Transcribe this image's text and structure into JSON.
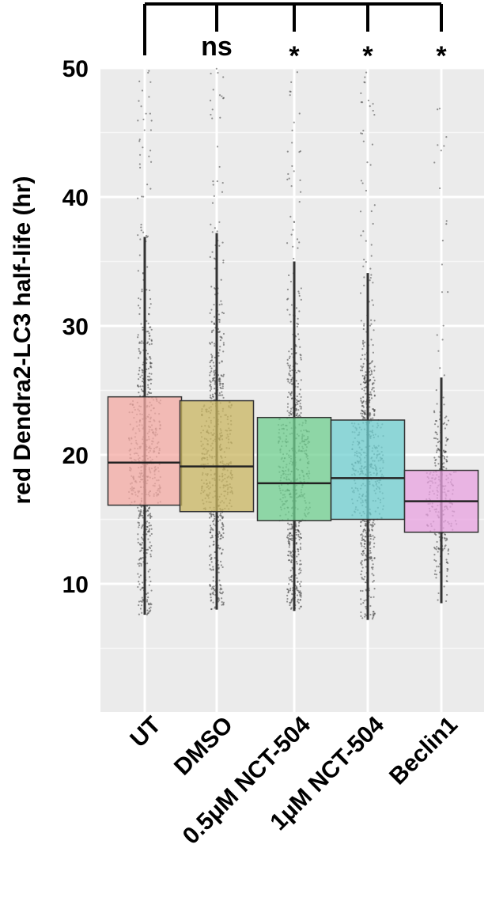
{
  "chart_data": {
    "type": "box",
    "ylabel": "red Dendra2-LC3 half-life (hr)",
    "xlabel": "",
    "ylim": [
      0,
      55
    ],
    "y_ticks": [
      10,
      20,
      30,
      40,
      50
    ],
    "grid": true,
    "categories": [
      "UT",
      "DMSO",
      "0.5μM NCT-504",
      "1μM NCT-504",
      "Beclin1"
    ],
    "series": [
      {
        "category": "UT",
        "color": "#f4a9a3",
        "whisker_low": 7.6,
        "q1": 16.1,
        "median": 19.4,
        "q3": 24.5,
        "whisker_high": 36.9,
        "max_outlier": 50
      },
      {
        "category": "DMSO",
        "color": "#c9b560",
        "whisker_low": 8.0,
        "q1": 15.6,
        "median": 19.1,
        "q3": 24.2,
        "whisker_high": 37.2,
        "max_outlier": 50
      },
      {
        "category": "0.5μM NCT-504",
        "color": "#6fcf8f",
        "whisker_low": 7.9,
        "q1": 14.9,
        "median": 17.8,
        "q3": 22.9,
        "whisker_high": 35.0,
        "max_outlier": 50
      },
      {
        "category": "1μM NCT-504",
        "color": "#6fcfd0",
        "whisker_low": 7.2,
        "q1": 15.0,
        "median": 18.2,
        "q3": 22.7,
        "whisker_high": 34.1,
        "max_outlier": 50
      },
      {
        "category": "Beclin1",
        "color": "#e8a2e0",
        "whisker_low": 8.5,
        "q1": 14.0,
        "median": 16.4,
        "q3": 18.8,
        "whisker_high": 26.0,
        "max_outlier": 48.5
      }
    ],
    "significance": {
      "reference": "UT",
      "labels": [
        "",
        "ns",
        "*",
        "*",
        "*"
      ]
    }
  }
}
